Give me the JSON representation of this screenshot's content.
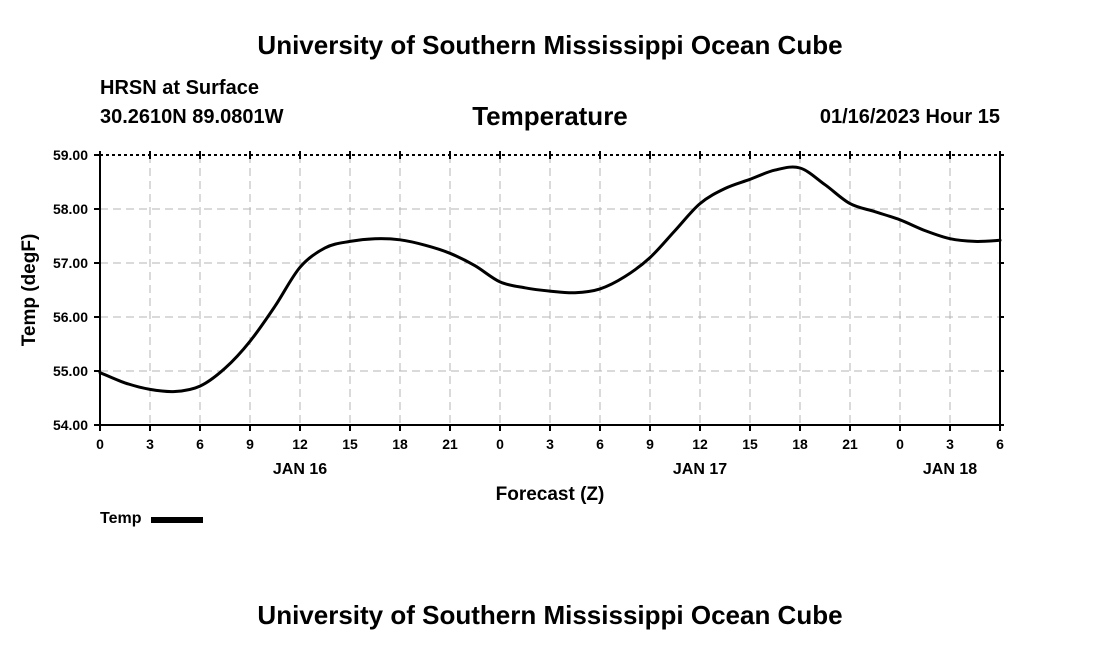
{
  "header": {
    "title": "University of Southern Mississippi Ocean Cube",
    "station": "HRSN at Surface",
    "coords": "30.2610N  89.0801W",
    "timestamp": "01/16/2023 Hour 15"
  },
  "footer": {
    "title": "University of Southern Mississippi Ocean Cube"
  },
  "chart_data": {
    "type": "line",
    "title": "Temperature",
    "xlabel": "Forecast (Z)",
    "ylabel": "Temp (degF)",
    "xlim": [
      0,
      54
    ],
    "ylim": [
      54,
      59
    ],
    "grid": true,
    "legend": "bottom-left",
    "y_ticks": [
      54,
      55,
      56,
      57,
      58,
      59
    ],
    "y_tick_labels": [
      "54.00",
      "55.00",
      "56.00",
      "57.00",
      "58.00",
      "59.00"
    ],
    "x_ticks": [
      0,
      3,
      6,
      9,
      12,
      15,
      18,
      21,
      24,
      27,
      30,
      33,
      36,
      39,
      42,
      45,
      48,
      51,
      54
    ],
    "x_tick_labels": [
      "0",
      "3",
      "6",
      "9",
      "12",
      "15",
      "18",
      "21",
      "0",
      "3",
      "6",
      "9",
      "12",
      "15",
      "18",
      "21",
      "0",
      "3",
      "6"
    ],
    "date_labels": [
      {
        "x": 12,
        "label": "JAN 16"
      },
      {
        "x": 36,
        "label": "JAN 17"
      },
      {
        "x": 51,
        "label": "JAN 18"
      }
    ],
    "series": [
      {
        "name": "Temp",
        "color": "#000000",
        "x": [
          0,
          1.5,
          3,
          4.5,
          6,
          7.5,
          9,
          10.5,
          12,
          13.5,
          15,
          16.5,
          18,
          19.5,
          21,
          22.5,
          24,
          25.5,
          27,
          28.5,
          30,
          31.5,
          33,
          34.5,
          36,
          37.5,
          39,
          40.5,
          42,
          43.5,
          45,
          46.5,
          48,
          49.5,
          51,
          52.5,
          54
        ],
        "values": [
          54.97,
          54.78,
          54.66,
          54.62,
          54.72,
          55.05,
          55.55,
          56.2,
          56.92,
          57.28,
          57.4,
          57.45,
          57.43,
          57.33,
          57.18,
          56.95,
          56.65,
          56.54,
          56.48,
          56.45,
          56.52,
          56.75,
          57.1,
          57.6,
          58.1,
          58.38,
          58.55,
          58.72,
          58.76,
          58.45,
          58.1,
          57.95,
          57.8,
          57.6,
          57.45,
          57.4,
          57.42
        ]
      }
    ]
  }
}
